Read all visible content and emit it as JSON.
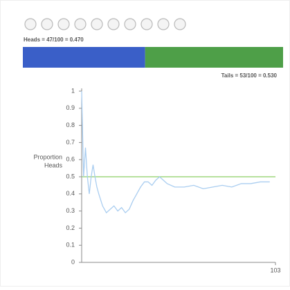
{
  "proportion_bar": {
    "heads_label": "Heads = 47/100 = 0.470",
    "tails_label": "Tails = 53/100 = 0.530",
    "heads": 0.47,
    "tails": 0.53,
    "heads_color": "#3a5fc8",
    "tails_color": "#4e9f48"
  },
  "chart_data": {
    "type": "line",
    "ylabel": [
      "Proportion",
      "Heads"
    ],
    "x": [
      1,
      2,
      3,
      4,
      5,
      6,
      7,
      8,
      9,
      10,
      12,
      14,
      16,
      18,
      20,
      22,
      24,
      26,
      28,
      30,
      32,
      34,
      36,
      38,
      40,
      42,
      44,
      46,
      50,
      55,
      60,
      65,
      70,
      75,
      80,
      85,
      90,
      95,
      100
    ],
    "series": [
      {
        "color": "#a9cdf0",
        "values": [
          1,
          0.5,
          0.67,
          0.5,
          0.4,
          0.5,
          0.57,
          0.5,
          0.44,
          0.4,
          0.33,
          0.29,
          0.31,
          0.33,
          0.3,
          0.32,
          0.29,
          0.31,
          0.36,
          0.4,
          0.44,
          0.47,
          0.47,
          0.45,
          0.48,
          0.5,
          0.48,
          0.46,
          0.44,
          0.44,
          0.45,
          0.43,
          0.44,
          0.45,
          0.44,
          0.46,
          0.46,
          0.47,
          0.47
        ]
      }
    ],
    "reference_line": {
      "value": 0.5,
      "color": "#9ed77c"
    },
    "xlim": [
      1,
      103
    ],
    "xticks": [
      103
    ],
    "ylim": [
      0,
      1
    ],
    "yticks": [
      0,
      0.1,
      0.2,
      0.3,
      0.4,
      0.5,
      0.6,
      0.7,
      0.8,
      0.9,
      1
    ]
  }
}
